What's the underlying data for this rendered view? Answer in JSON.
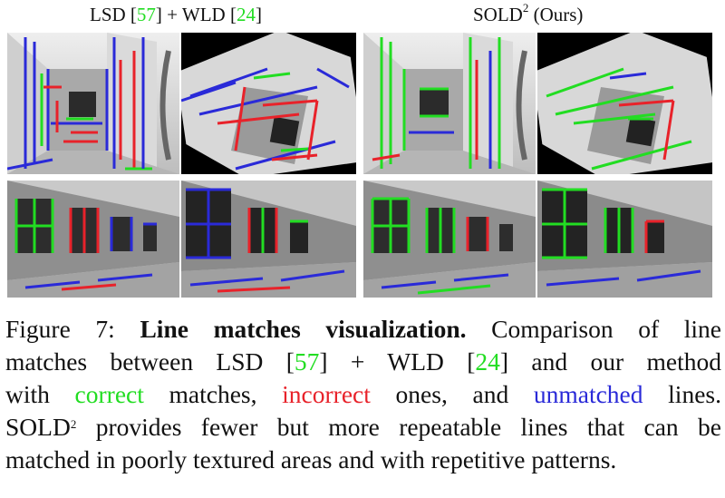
{
  "headers": {
    "left": {
      "prefix": "LSD [",
      "ref1": "57",
      "mid": "] + WLD [",
      "ref2": "24",
      "suffix": "]"
    },
    "right": {
      "prefix": "SOLD",
      "sup": "2",
      "suffix": " (Ours)"
    }
  },
  "caption": {
    "fig_label": "Figure 7:",
    "bold_title": "Line matches visualization.",
    "l1_rest": "Comparison of line",
    "l2_a": "matches between LSD [",
    "l2_ref1": "57",
    "l2_b": "] + WLD [",
    "l2_ref2": "24",
    "l2_c": "] and our method",
    "l3_a": "with",
    "word_correct": "correct",
    "l3_b": "matches,",
    "word_incorrect": "incorrect",
    "l3_c": "ones, and",
    "word_unmatched": "unmatched",
    "l3_d": "lines.",
    "l4_a": "SOLD",
    "l4_sup": "2",
    "l4_b": "provides fewer but more repeatable lines that can be",
    "l5": "matched in poorly textured areas and with repetitive patterns."
  },
  "colors": {
    "correct": "#22dd22",
    "incorrect": "#e8222a",
    "unmatched": "#2a2ad8"
  }
}
